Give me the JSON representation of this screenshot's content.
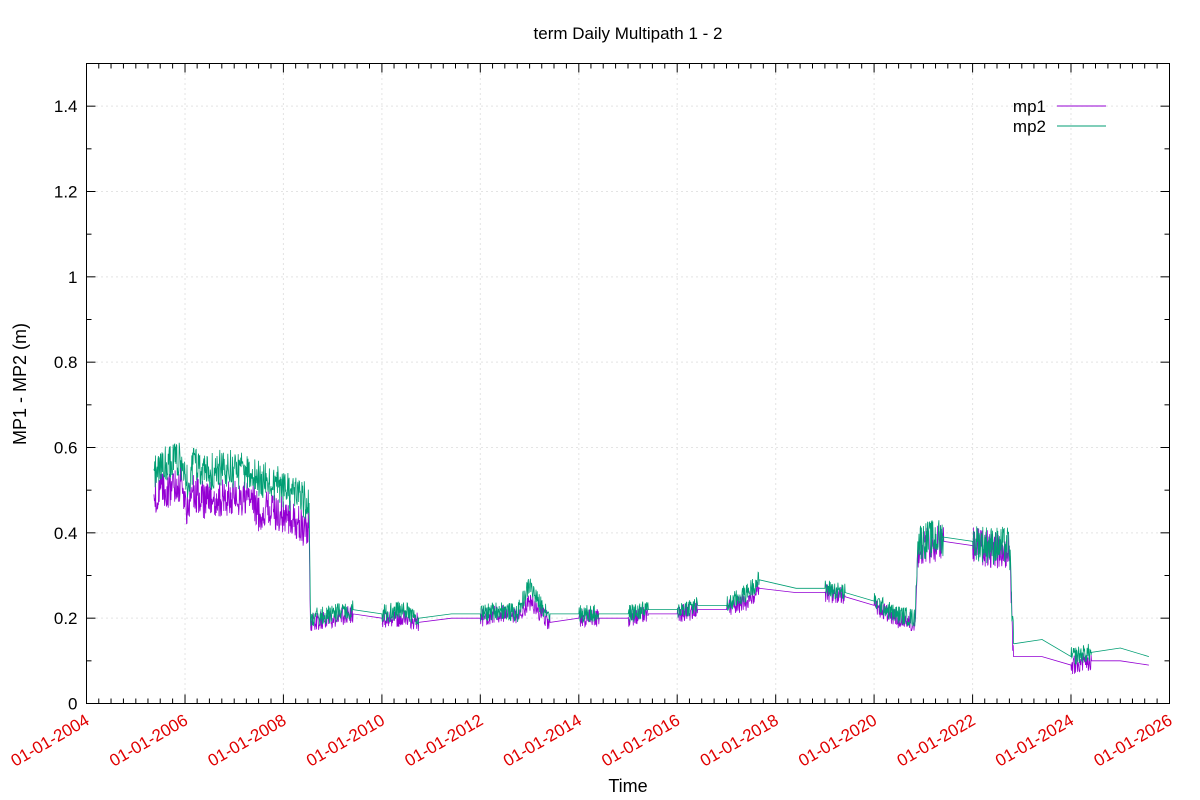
{
  "chart_data": {
    "type": "line",
    "title": "term Daily Multipath 1 - 2",
    "xlabel": "Time",
    "ylabel": "MP1 - MP2 (m)",
    "xlim": [
      "2004-01-01",
      "2026-01-01"
    ],
    "ylim": [
      0,
      1.5
    ],
    "y_ticks": [
      0,
      0.2,
      0.4,
      0.6,
      0.8,
      1,
      1.2,
      1.4
    ],
    "y_tick_labels": [
      "0",
      "0.2",
      "0.4",
      "0.6",
      "0.8",
      "1",
      "1.2",
      "1.4"
    ],
    "x_ticks": [
      "2004-01-01",
      "2006-01-01",
      "2008-01-01",
      "2010-01-01",
      "2012-01-01",
      "2014-01-01",
      "2016-01-01",
      "2018-01-01",
      "2020-01-01",
      "2022-01-01",
      "2024-01-01",
      "2026-01-01"
    ],
    "x_tick_labels": [
      "01-01-2004",
      "01-01-2006",
      "01-01-2008",
      "01-01-2010",
      "01-01-2012",
      "01-01-2014",
      "01-01-2016",
      "01-01-2018",
      "01-01-2020",
      "01-01-2022",
      "01-01-2024",
      "01-01-2026"
    ],
    "grid": true,
    "legend_position": "top-right",
    "tick_label_color": "#e00000",
    "series": [
      {
        "name": "mp1",
        "color": "#9400d3",
        "points": [
          [
            "2005-05-15",
            0.49
          ],
          [
            "2005-09-01",
            0.5
          ],
          [
            "2005-12-01",
            0.52
          ],
          [
            "2006-01-10",
            0.45
          ],
          [
            "2006-03-01",
            0.5
          ],
          [
            "2006-06-01",
            0.47
          ],
          [
            "2006-09-01",
            0.48
          ],
          [
            "2007-01-01",
            0.48
          ],
          [
            "2007-05-01",
            0.48
          ],
          [
            "2007-07-15",
            0.44
          ],
          [
            "2007-09-01",
            0.46
          ],
          [
            "2008-03-01",
            0.43
          ],
          [
            "2008-06-01",
            0.41
          ],
          [
            "2008-07-10",
            0.41
          ],
          [
            "2008-07-20",
            0.19
          ],
          [
            "2009-01-01",
            0.2
          ],
          [
            "2009-06-01",
            0.21
          ],
          [
            "2010-01-01",
            0.2
          ],
          [
            "2010-06-01",
            0.2
          ],
          [
            "2010-10-01",
            0.19
          ],
          [
            "2011-06-01",
            0.2
          ],
          [
            "2012-01-01",
            0.2
          ],
          [
            "2012-06-01",
            0.21
          ],
          [
            "2012-10-01",
            0.2
          ],
          [
            "2013-01-01",
            0.24
          ],
          [
            "2013-03-01",
            0.22
          ],
          [
            "2013-06-01",
            0.19
          ],
          [
            "2014-01-01",
            0.2
          ],
          [
            "2014-06-01",
            0.2
          ],
          [
            "2015-01-01",
            0.2
          ],
          [
            "2015-06-01",
            0.21
          ],
          [
            "2016-01-01",
            0.21
          ],
          [
            "2016-06-01",
            0.22
          ],
          [
            "2017-01-01",
            0.22
          ],
          [
            "2017-06-01",
            0.24
          ],
          [
            "2017-09-01",
            0.27
          ],
          [
            "2018-06-01",
            0.26
          ],
          [
            "2019-01-01",
            0.26
          ],
          [
            "2019-06-01",
            0.25
          ],
          [
            "2020-01-01",
            0.23
          ],
          [
            "2020-06-01",
            0.2
          ],
          [
            "2020-11-01",
            0.19
          ],
          [
            "2020-11-20",
            0.36
          ],
          [
            "2021-06-01",
            0.38
          ],
          [
            "2022-01-01",
            0.37
          ],
          [
            "2022-06-01",
            0.36
          ],
          [
            "2022-10-01",
            0.36
          ],
          [
            "2022-11-01",
            0.11
          ],
          [
            "2023-06-01",
            0.11
          ],
          [
            "2024-01-01",
            0.09
          ],
          [
            "2024-06-01",
            0.1
          ],
          [
            "2025-01-01",
            0.1
          ],
          [
            "2025-08-01",
            0.09
          ]
        ]
      },
      {
        "name": "mp2",
        "color": "#009e73",
        "points": [
          [
            "2005-05-15",
            0.55
          ],
          [
            "2005-09-01",
            0.56
          ],
          [
            "2005-12-01",
            0.57
          ],
          [
            "2006-01-10",
            0.52
          ],
          [
            "2006-03-01",
            0.56
          ],
          [
            "2006-06-01",
            0.54
          ],
          [
            "2006-09-01",
            0.55
          ],
          [
            "2007-01-01",
            0.55
          ],
          [
            "2007-05-01",
            0.54
          ],
          [
            "2007-07-15",
            0.52
          ],
          [
            "2007-09-01",
            0.53
          ],
          [
            "2008-03-01",
            0.49
          ],
          [
            "2008-06-01",
            0.48
          ],
          [
            "2008-07-10",
            0.47
          ],
          [
            "2008-07-20",
            0.2
          ],
          [
            "2009-01-01",
            0.21
          ],
          [
            "2009-06-01",
            0.22
          ],
          [
            "2010-01-01",
            0.21
          ],
          [
            "2010-06-01",
            0.22
          ],
          [
            "2010-10-01",
            0.2
          ],
          [
            "2011-06-01",
            0.21
          ],
          [
            "2012-01-01",
            0.21
          ],
          [
            "2012-06-01",
            0.22
          ],
          [
            "2012-10-01",
            0.21
          ],
          [
            "2013-01-01",
            0.28
          ],
          [
            "2013-03-01",
            0.24
          ],
          [
            "2013-06-01",
            0.21
          ],
          [
            "2014-01-01",
            0.21
          ],
          [
            "2014-06-01",
            0.21
          ],
          [
            "2015-01-01",
            0.21
          ],
          [
            "2015-06-01",
            0.22
          ],
          [
            "2016-01-01",
            0.22
          ],
          [
            "2016-06-01",
            0.23
          ],
          [
            "2017-01-01",
            0.23
          ],
          [
            "2017-06-01",
            0.26
          ],
          [
            "2017-09-01",
            0.29
          ],
          [
            "2018-06-01",
            0.27
          ],
          [
            "2019-01-01",
            0.27
          ],
          [
            "2019-06-01",
            0.26
          ],
          [
            "2020-01-01",
            0.24
          ],
          [
            "2020-06-01",
            0.21
          ],
          [
            "2020-11-01",
            0.2
          ],
          [
            "2020-11-20",
            0.38
          ],
          [
            "2021-06-01",
            0.39
          ],
          [
            "2022-01-01",
            0.38
          ],
          [
            "2022-06-01",
            0.37
          ],
          [
            "2022-10-01",
            0.37
          ],
          [
            "2022-11-01",
            0.14
          ],
          [
            "2023-06-01",
            0.15
          ],
          [
            "2024-01-01",
            0.11
          ],
          [
            "2024-06-01",
            0.12
          ],
          [
            "2025-01-01",
            0.13
          ],
          [
            "2025-08-01",
            0.11
          ]
        ]
      }
    ]
  }
}
